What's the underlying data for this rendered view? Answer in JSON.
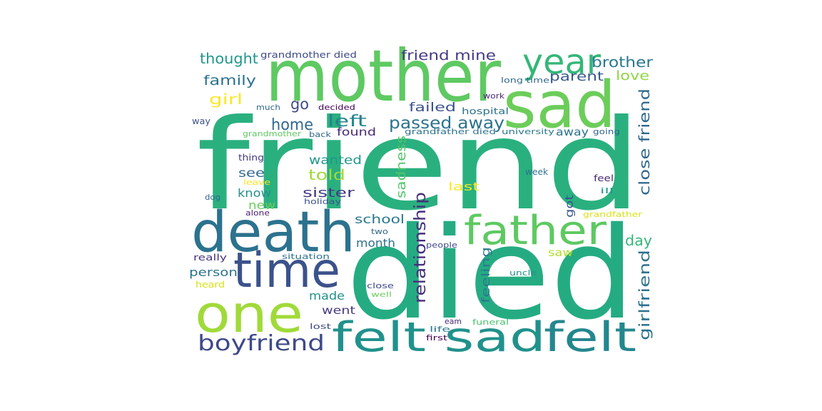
{
  "wordcloud": {
    "words": [
      {
        "text": "friend",
        "color": "#2ab07f"
      },
      {
        "text": "died",
        "color": "#25ab82"
      },
      {
        "text": "mother",
        "color": "#5ec962"
      },
      {
        "text": "sad",
        "color": "#6ccd5a"
      },
      {
        "text": "death",
        "color": "#2c728e"
      },
      {
        "text": "time",
        "color": "#3b528b"
      },
      {
        "text": "one",
        "color": "#a0da39"
      },
      {
        "text": "felt sad",
        "color": "#21918c"
      },
      {
        "text": "felt",
        "color": "#24878e"
      },
      {
        "text": "father",
        "color": "#5ec962"
      },
      {
        "text": "year",
        "color": "#35b779"
      },
      {
        "text": "boyfriend",
        "color": "#3e4989"
      },
      {
        "text": "passed away",
        "color": "#2c728e"
      },
      {
        "text": "relationship",
        "color": "#472d7b"
      },
      {
        "text": "close friend",
        "color": "#31688e"
      },
      {
        "text": "girlfriend",
        "color": "#2c728e"
      },
      {
        "text": "home",
        "color": "#31688e"
      },
      {
        "text": "left",
        "color": "#25848e"
      },
      {
        "text": "sadness",
        "color": "#52c569"
      },
      {
        "text": "thought",
        "color": "#1f988b"
      },
      {
        "text": "brother",
        "color": "#2a788e"
      },
      {
        "text": "friend mine",
        "color": "#443a83"
      },
      {
        "text": "family",
        "color": "#2c728e"
      },
      {
        "text": "parent",
        "color": "#38588c"
      },
      {
        "text": "love",
        "color": "#8fd744"
      },
      {
        "text": "girl",
        "color": "#fde725"
      },
      {
        "text": "go",
        "color": "#3e4989"
      },
      {
        "text": "failed",
        "color": "#3b528b"
      },
      {
        "text": "found",
        "color": "#482878"
      },
      {
        "text": "away",
        "color": "#2c728e"
      },
      {
        "text": "wanted",
        "color": "#1f988b"
      },
      {
        "text": "told",
        "color": "#a0da39"
      },
      {
        "text": "see",
        "color": "#31688e"
      },
      {
        "text": "sister",
        "color": "#443a83"
      },
      {
        "text": "know",
        "color": "#21918c"
      },
      {
        "text": "last",
        "color": "#fde725"
      },
      {
        "text": "new",
        "color": "#6ccd5a"
      },
      {
        "text": "got",
        "color": "#39568c"
      },
      {
        "text": "school",
        "color": "#2a788e"
      },
      {
        "text": "day",
        "color": "#35b779"
      },
      {
        "text": "month",
        "color": "#2c728e"
      },
      {
        "text": "person",
        "color": "#2c728e"
      },
      {
        "text": "saw",
        "color": "#b5de2b"
      },
      {
        "text": "feeling",
        "color": "#2a788e"
      },
      {
        "text": "made",
        "color": "#21918c"
      },
      {
        "text": "went",
        "color": "#443a83"
      },
      {
        "text": "grandmother died",
        "color": "#3e4989"
      },
      {
        "text": "long time",
        "color": "#31688e"
      },
      {
        "text": "work",
        "color": "#482878"
      },
      {
        "text": "much",
        "color": "#31688e"
      },
      {
        "text": "decided",
        "color": "#440154"
      },
      {
        "text": "hospital",
        "color": "#2c728e"
      },
      {
        "text": "way",
        "color": "#3b528b"
      },
      {
        "text": "grandmother",
        "color": "#5ec962"
      },
      {
        "text": "back",
        "color": "#31688e"
      },
      {
        "text": "grandfather died",
        "color": "#2c728e"
      },
      {
        "text": "university",
        "color": "#2a788e"
      },
      {
        "text": "going",
        "color": "#31688e"
      },
      {
        "text": "thing",
        "color": "#443a83"
      },
      {
        "text": "leave",
        "color": "#fde725"
      },
      {
        "text": "week",
        "color": "#2c728e"
      },
      {
        "text": "feel",
        "color": "#482878"
      },
      {
        "text": "ill",
        "color": "#1f988b"
      },
      {
        "text": "dog",
        "color": "#31688e"
      },
      {
        "text": "holiday",
        "color": "#3b528b"
      },
      {
        "text": "alone",
        "color": "#481f70"
      },
      {
        "text": "grandfather",
        "color": "#d8e219"
      },
      {
        "text": "two",
        "color": "#31688e"
      },
      {
        "text": "people",
        "color": "#3e4989"
      },
      {
        "text": "really",
        "color": "#46337f"
      },
      {
        "text": "situation",
        "color": "#2c728e"
      },
      {
        "text": "uncle",
        "color": "#21918c"
      },
      {
        "text": "heard",
        "color": "#d8e219"
      },
      {
        "text": "close",
        "color": "#3e4989"
      },
      {
        "text": "well",
        "color": "#6ccd5a"
      },
      {
        "text": "eam",
        "color": "#482878"
      },
      {
        "text": "lost",
        "color": "#3e4989"
      },
      {
        "text": "funeral",
        "color": "#4ac16d"
      },
      {
        "text": "life",
        "color": "#2a788e"
      },
      {
        "text": "first",
        "color": "#440154"
      }
    ]
  }
}
